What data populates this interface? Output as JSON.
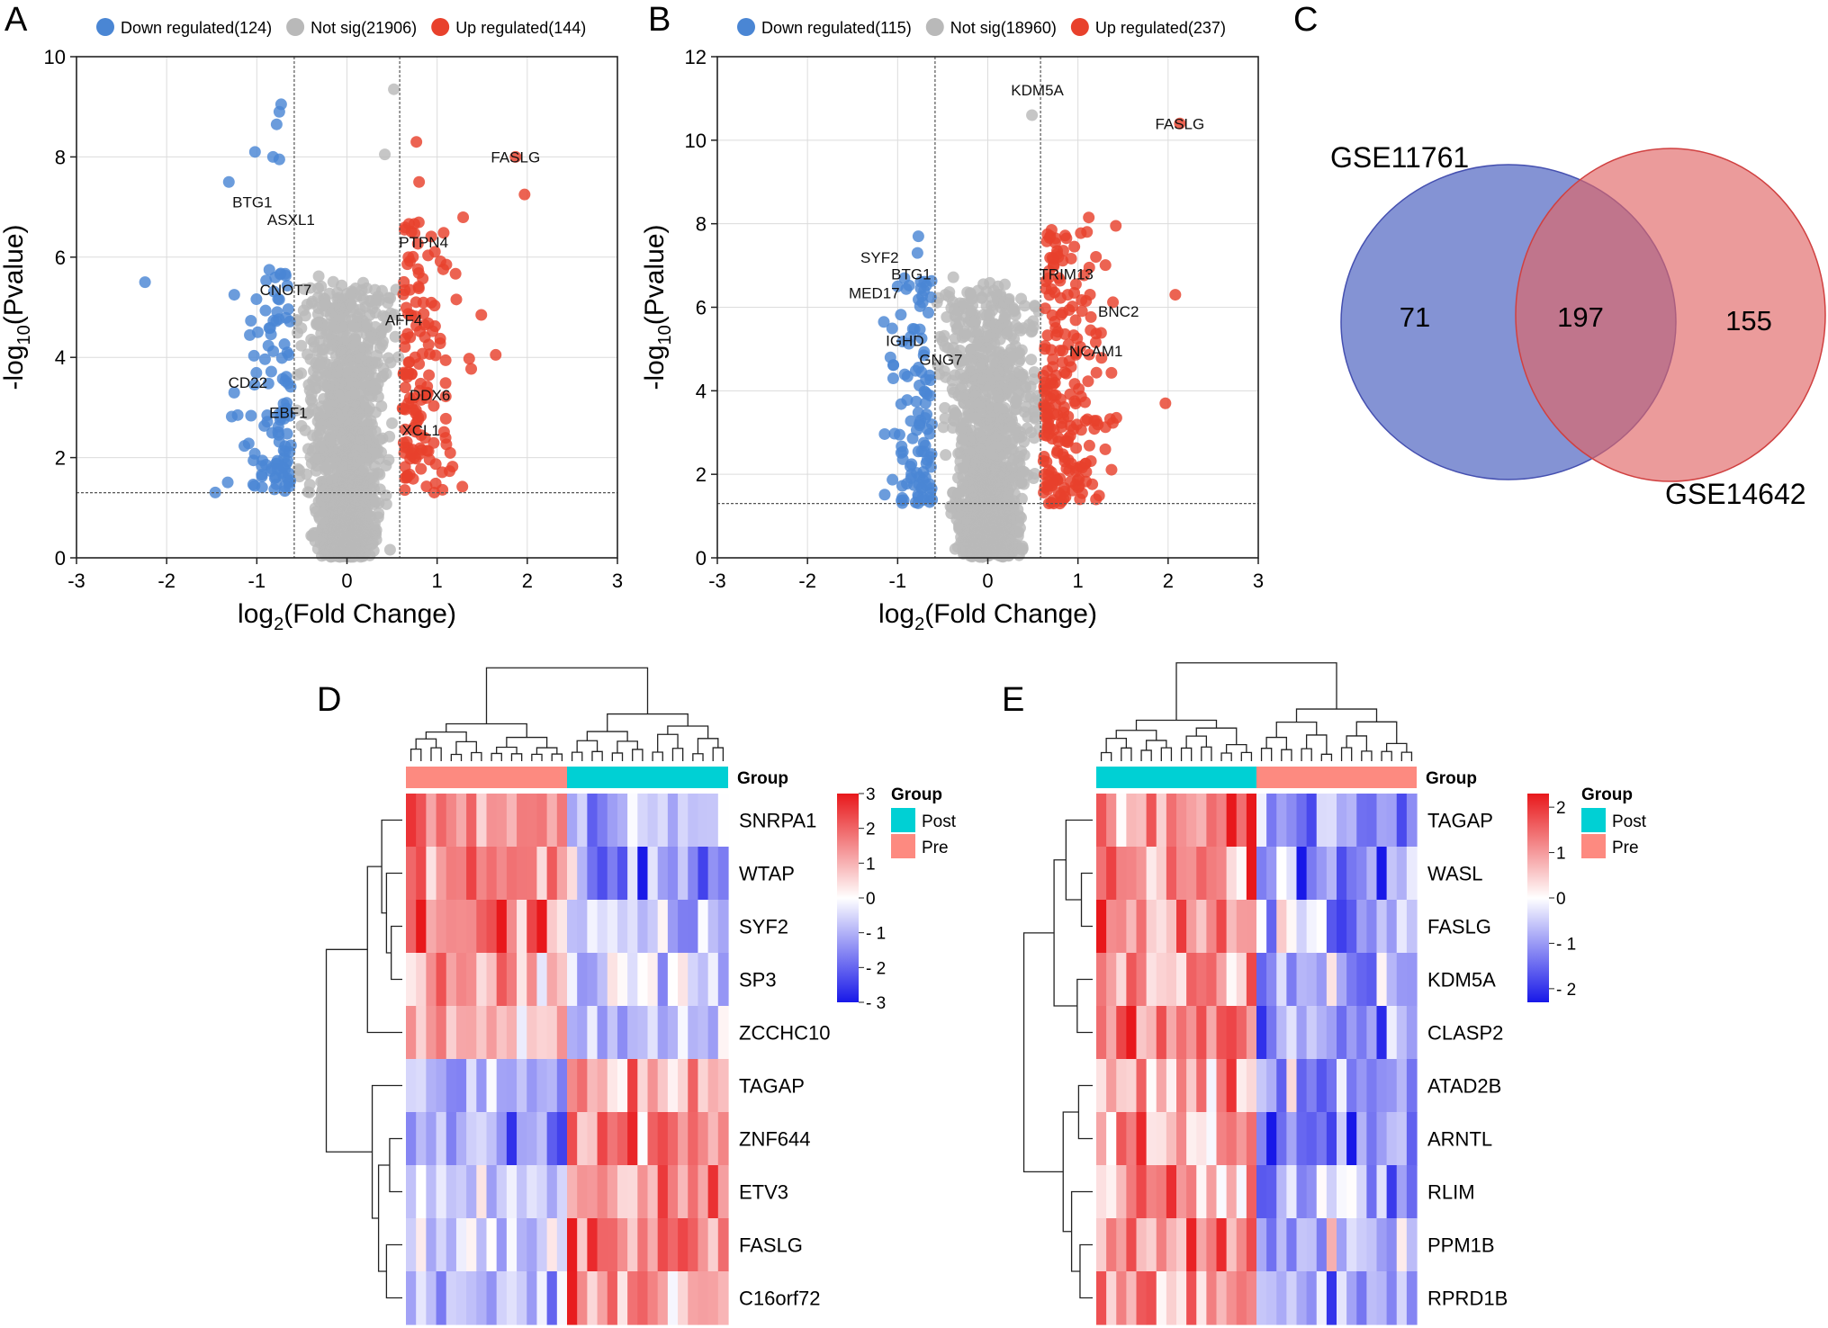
{
  "colors": {
    "down": "#4a86d4",
    "notsig": "#b9b9b9",
    "up": "#e8412c",
    "post": "#00d0d4",
    "pre": "#fd8a80",
    "venn_a": "#5b6fc6",
    "venn_b": "#e06565",
    "heat_hi": "#e8181b",
    "heat_lo": "#1818e8"
  },
  "chart_data": [
    {
      "panel": "A",
      "type": "scatter",
      "title": "",
      "xlabel": "log2(Fold Change)",
      "ylabel": "-log10(Pvalue)",
      "xlim": [
        -3,
        3
      ],
      "ylim": [
        0,
        10
      ],
      "xticks": [
        "-3",
        "-2",
        "-1",
        "0",
        "1",
        "2",
        "3"
      ],
      "yticks": [
        "0",
        "2",
        "4",
        "6",
        "8",
        "10"
      ],
      "thresholds": {
        "x": [
          -0.585,
          0.585
        ],
        "y": 1.3
      },
      "legend": [
        {
          "cls": "down",
          "label": "Down regulated(124)"
        },
        {
          "cls": "notsig",
          "label": "Not sig(21906)"
        },
        {
          "cls": "up",
          "label": "Up regulated(144)"
        }
      ],
      "labels": [
        {
          "text": "FASLG",
          "x": 1.87,
          "y": 8.0
        },
        {
          "text": "BTG1",
          "x": -1.05,
          "y": 7.1
        },
        {
          "text": "ASXL1",
          "x": -0.62,
          "y": 6.75
        },
        {
          "text": "PTPN4",
          "x": 0.85,
          "y": 6.3
        },
        {
          "text": "CNOT7",
          "x": -0.68,
          "y": 5.35
        },
        {
          "text": "AFF4",
          "x": 0.63,
          "y": 4.75
        },
        {
          "text": "CD22",
          "x": -1.1,
          "y": 3.5
        },
        {
          "text": "DDX6",
          "x": 0.92,
          "y": 3.25
        },
        {
          "text": "EBF1",
          "x": -0.65,
          "y": 2.9
        },
        {
          "text": "XCL1",
          "x": 0.82,
          "y": 2.55
        }
      ],
      "outliers": [
        {
          "cls": "down",
          "x": -0.73,
          "y": 9.05
        },
        {
          "cls": "down",
          "x": -0.75,
          "y": 8.9
        },
        {
          "cls": "down",
          "x": -0.78,
          "y": 8.65
        },
        {
          "cls": "down",
          "x": -1.02,
          "y": 8.1
        },
        {
          "cls": "down",
          "x": -0.82,
          "y": 8.0
        },
        {
          "cls": "down",
          "x": -0.75,
          "y": 7.95
        },
        {
          "cls": "down",
          "x": -1.31,
          "y": 7.5
        },
        {
          "cls": "down",
          "x": -2.24,
          "y": 5.5
        },
        {
          "cls": "down",
          "x": -1.25,
          "y": 5.25
        },
        {
          "cls": "up",
          "x": 1.87,
          "y": 8.0
        },
        {
          "cls": "up",
          "x": 1.97,
          "y": 7.25
        },
        {
          "cls": "up",
          "x": 0.77,
          "y": 8.3
        },
        {
          "cls": "up",
          "x": 0.8,
          "y": 7.5
        },
        {
          "cls": "up",
          "x": 1.65,
          "y": 4.05
        },
        {
          "cls": "notsig",
          "x": 0.52,
          "y": 9.35
        },
        {
          "cls": "notsig",
          "x": 0.42,
          "y": 8.05
        }
      ]
    },
    {
      "panel": "B",
      "type": "scatter",
      "title": "",
      "xlabel": "log2(Fold Change)",
      "ylabel": "-log10(Pvalue)",
      "xlim": [
        -3,
        3
      ],
      "ylim": [
        0,
        12
      ],
      "xticks": [
        "-3",
        "-2",
        "-1",
        "0",
        "1",
        "2",
        "3"
      ],
      "yticks": [
        "0",
        "2",
        "4",
        "6",
        "8",
        "10",
        "12"
      ],
      "thresholds": {
        "x": [
          -0.585,
          0.585
        ],
        "y": 1.3
      },
      "legend": [
        {
          "cls": "down",
          "label": "Down regulated(115)"
        },
        {
          "cls": "notsig",
          "label": "Not sig(18960)"
        },
        {
          "cls": "up",
          "label": "Up regulated(237)"
        }
      ],
      "labels": [
        {
          "text": "KDM5A",
          "x": 0.55,
          "y": 11.2
        },
        {
          "text": "FASLG",
          "x": 2.13,
          "y": 10.4
        },
        {
          "text": "SYF2",
          "x": -1.2,
          "y": 7.2
        },
        {
          "text": "BTG1",
          "x": -0.85,
          "y": 6.8
        },
        {
          "text": "TRIM13",
          "x": 0.87,
          "y": 6.8
        },
        {
          "text": "MED17",
          "x": -1.26,
          "y": 6.35
        },
        {
          "text": "BNC2",
          "x": 1.45,
          "y": 5.9
        },
        {
          "text": "IGHD",
          "x": -0.92,
          "y": 5.2
        },
        {
          "text": "NCAM1",
          "x": 1.2,
          "y": 4.95
        },
        {
          "text": "GNG7",
          "x": -0.52,
          "y": 4.75
        }
      ],
      "outliers": [
        {
          "cls": "notsig",
          "x": 0.49,
          "y": 10.6
        },
        {
          "cls": "up",
          "x": 2.13,
          "y": 10.4
        },
        {
          "cls": "down",
          "x": -0.77,
          "y": 7.7
        },
        {
          "cls": "down",
          "x": -0.78,
          "y": 7.3
        },
        {
          "cls": "down",
          "x": -1.0,
          "y": 6.5
        },
        {
          "cls": "down",
          "x": -1.08,
          "y": 4.8
        },
        {
          "cls": "up",
          "x": 2.08,
          "y": 6.3
        },
        {
          "cls": "up",
          "x": 1.97,
          "y": 3.7
        },
        {
          "cls": "up",
          "x": 1.12,
          "y": 8.15
        },
        {
          "cls": "up",
          "x": 1.42,
          "y": 7.95
        },
        {
          "cls": "up",
          "x": 1.2,
          "y": 1.4
        }
      ]
    },
    {
      "panel": "C",
      "type": "venn",
      "sets": [
        {
          "name": "GSE11761",
          "only": 71
        },
        {
          "name": "GSE14642",
          "only": 155
        }
      ],
      "intersection": 197
    },
    {
      "panel": "D",
      "type": "heatmap",
      "rows": [
        "SNRPA1",
        "WTAP",
        "SYF2",
        "SP3",
        "ZCCHC10",
        "TAGAP",
        "ZNF644",
        "ETV3",
        "FASLG",
        "C16orf72"
      ],
      "group_order": [
        "pre",
        "post"
      ],
      "n_cols": [
        16,
        16
      ],
      "legend_ticks": [
        "3",
        "2",
        "1",
        "0",
        "- 1",
        "- 2",
        "- 3"
      ],
      "range": [
        -3,
        3
      ],
      "row_means": {
        "pre": [
          1.6,
          1.5,
          1.5,
          1.2,
          0.9,
          -1.2,
          -1.1,
          -0.8,
          -0.6,
          -0.7
        ],
        "post": [
          -1.0,
          -1.0,
          -0.8,
          -0.6,
          -0.9,
          1.0,
          1.2,
          1.3,
          1.4,
          1.3
        ]
      },
      "group_label": "Group",
      "group_legend": [
        {
          "cls": "post",
          "label": "Post"
        },
        {
          "cls": "pre",
          "label": "Pre"
        }
      ]
    },
    {
      "panel": "E",
      "type": "heatmap",
      "rows": [
        "TAGAP",
        "WASL",
        "FASLG",
        "KDM5A",
        "CLASP2",
        "ATAD2B",
        "ARNTL",
        "RLIM",
        "PPM1B",
        "RPRD1B"
      ],
      "group_order": [
        "post",
        "pre"
      ],
      "n_cols": [
        16,
        16
      ],
      "legend_ticks": [
        "2",
        "1",
        "0",
        "- 1",
        "- 2"
      ],
      "range": [
        -2.3,
        2.3
      ],
      "row_means": {
        "post": [
          1.1,
          1.1,
          1.1,
          1.0,
          1.1,
          1.0,
          1.1,
          1.0,
          1.0,
          1.0
        ],
        "pre": [
          -1.0,
          -1.0,
          -0.9,
          -0.9,
          -1.1,
          -1.0,
          -1.1,
          -1.0,
          -0.9,
          -0.8
        ]
      },
      "group_label": "Group",
      "group_legend": [
        {
          "cls": "post",
          "label": "Post"
        },
        {
          "cls": "pre",
          "label": "Pre"
        }
      ]
    }
  ]
}
